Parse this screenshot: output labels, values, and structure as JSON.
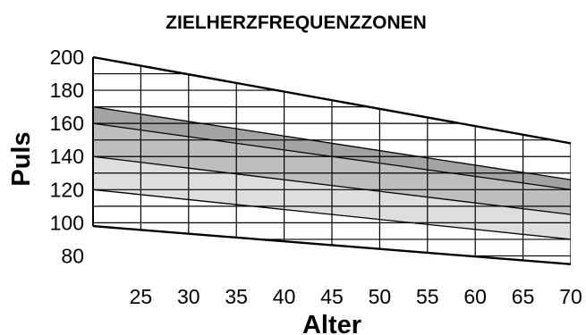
{
  "chart_data": {
    "type": "area",
    "title": "ZIELHERZFREQUENZZONEN",
    "xlabel": "Alter",
    "ylabel": "Puls",
    "x_ticks": [
      25,
      30,
      35,
      40,
      45,
      50,
      55,
      60,
      65,
      70
    ],
    "y_ticks": [
      80,
      100,
      120,
      140,
      160,
      180,
      200
    ],
    "xlim": [
      20,
      70
    ],
    "ylim": [
      70,
      200
    ],
    "grid": true,
    "lines": [
      {
        "x": [
          20,
          70
        ],
        "y": [
          200,
          148
        ]
      },
      {
        "x": [
          20,
          70
        ],
        "y": [
          170,
          126
        ]
      },
      {
        "x": [
          20,
          70
        ],
        "y": [
          160,
          120
        ]
      },
      {
        "x": [
          20,
          70
        ],
        "y": [
          140,
          105
        ]
      },
      {
        "x": [
          20,
          70
        ],
        "y": [
          120,
          90
        ]
      },
      {
        "x": [
          20,
          70
        ],
        "y": [
          98,
          75
        ]
      }
    ],
    "bands": [
      {
        "lower": [
          160,
          120
        ],
        "upper": [
          170,
          126
        ],
        "color": "#a3a3a3"
      },
      {
        "lower": [
          140,
          105
        ],
        "upper": [
          160,
          120
        ],
        "color": "#bebebe"
      },
      {
        "lower": [
          120,
          90
        ],
        "upper": [
          140,
          105
        ],
        "color": "#dedede"
      }
    ]
  }
}
